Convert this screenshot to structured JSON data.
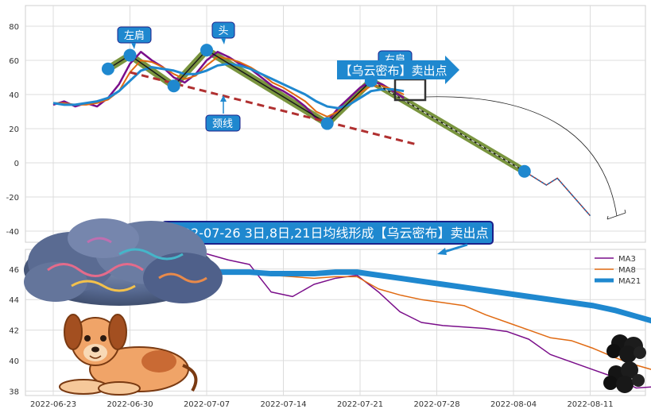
{
  "annotations": {
    "left_shoulder": "左肩",
    "head": "头",
    "right_shoulder": "右肩",
    "neckline": "颈线",
    "sell_arrow": "【乌云密布】卖出点",
    "banner": "2022-07-26 3日,8日,21日均线形成【乌云密布】卖出点"
  },
  "colors": {
    "callout_fill": "#1f88cf",
    "banner_fill": "#1f88cf",
    "banner_border": "#1b1f8a",
    "neckline": "#b03030",
    "trend": "#6b8a2a",
    "ma3": "#7a0e8a",
    "ma8": "#e06a12",
    "ma21": "#1f88cf"
  },
  "chart_data": [
    {
      "type": "line",
      "x_ticks": [
        "2022-06-23",
        "2022-06-30",
        "2022-07-07",
        "2022-07-14",
        "2022-07-21",
        "2022-07-28",
        "2022-08-04",
        "2022-08-11"
      ],
      "ylim": [
        -45,
        92
      ],
      "y_ticks": [
        80,
        60,
        40,
        20,
        0,
        -20,
        -40
      ],
      "grid": true,
      "pattern_points": [
        {
          "date": "2022-06-28",
          "value": 55
        },
        {
          "date": "2022-06-30",
          "value": 63
        },
        {
          "date": "2022-07-04",
          "value": 45
        },
        {
          "date": "2022-07-07",
          "value": 66
        },
        {
          "date": "2022-07-18",
          "value": 23
        },
        {
          "date": "2022-07-22",
          "value": 48
        },
        {
          "date": "2022-08-05",
          "value": -5
        }
      ],
      "neckline": {
        "from": {
          "date": "2022-06-30",
          "value": 53
        },
        "to": {
          "date": "2022-07-26",
          "value": 11
        }
      },
      "projection": [
        {
          "date": "2022-08-05",
          "value": -5
        },
        {
          "date": "2022-08-07",
          "value": -13
        },
        {
          "date": "2022-08-08",
          "value": -9
        },
        {
          "date": "2022-08-11",
          "value": -31
        }
      ],
      "series": [
        {
          "values": [
            [
              0,
              34
            ],
            [
              1,
              36
            ],
            [
              2,
              33
            ],
            [
              3,
              35
            ],
            [
              4,
              33
            ],
            [
              5,
              38
            ],
            [
              6,
              46
            ],
            [
              7,
              58
            ],
            [
              8,
              65
            ],
            [
              9,
              60
            ],
            [
              10,
              56
            ],
            [
              11,
              50
            ],
            [
              12,
              47
            ],
            [
              13,
              52
            ],
            [
              14,
              60
            ],
            [
              15,
              65
            ],
            [
              16,
              62
            ],
            [
              17,
              58
            ],
            [
              18,
              55
            ],
            [
              19,
              50
            ],
            [
              20,
              45
            ],
            [
              21,
              42
            ],
            [
              22,
              38
            ],
            [
              23,
              33
            ],
            [
              24,
              26
            ],
            [
              25,
              24
            ],
            [
              26,
              32
            ],
            [
              27,
              38
            ],
            [
              28,
              44
            ],
            [
              29,
              48
            ],
            [
              30,
              46
            ],
            [
              31,
              42
            ],
            [
              32,
              38
            ]
          ]
        },
        {
          "values": [
            [
              0,
              35
            ],
            [
              1,
              35
            ],
            [
              2,
              34
            ],
            [
              3,
              34
            ],
            [
              4,
              35
            ],
            [
              5,
              37
            ],
            [
              6,
              42
            ],
            [
              7,
              53
            ],
            [
              8,
              60
            ],
            [
              9,
              59
            ],
            [
              10,
              56
            ],
            [
              11,
              52
            ],
            [
              12,
              49
            ],
            [
              13,
              51
            ],
            [
              14,
              57
            ],
            [
              15,
              62
            ],
            [
              16,
              61
            ],
            [
              17,
              59
            ],
            [
              18,
              56
            ],
            [
              19,
              52
            ],
            [
              20,
              47
            ],
            [
              21,
              44
            ],
            [
              22,
              40
            ],
            [
              23,
              36
            ],
            [
              24,
              30
            ],
            [
              25,
              27
            ],
            [
              26,
              30
            ],
            [
              27,
              35
            ],
            [
              28,
              41
            ],
            [
              29,
              45
            ],
            [
              30,
              45
            ],
            [
              31,
              43
            ],
            [
              32,
              40
            ]
          ]
        },
        {
          "values": [
            [
              0,
              35
            ],
            [
              1,
              34
            ],
            [
              2,
              34
            ],
            [
              3,
              35
            ],
            [
              4,
              36
            ],
            [
              5,
              38
            ],
            [
              6,
              42
            ],
            [
              7,
              48
            ],
            [
              8,
              54
            ],
            [
              9,
              56
            ],
            [
              10,
              55
            ],
            [
              11,
              54
            ],
            [
              12,
              52
            ],
            [
              13,
              52
            ],
            [
              14,
              54
            ],
            [
              15,
              57
            ],
            [
              16,
              58
            ],
            [
              17,
              57
            ],
            [
              18,
              55
            ],
            [
              19,
              52
            ],
            [
              20,
              49
            ],
            [
              21,
              46
            ],
            [
              22,
              43
            ],
            [
              23,
              40
            ],
            [
              24,
              36
            ],
            [
              25,
              33
            ],
            [
              26,
              32
            ],
            [
              27,
              34
            ],
            [
              28,
              38
            ],
            [
              29,
              42
            ],
            [
              30,
              43
            ],
            [
              31,
              43
            ],
            [
              32,
              42
            ]
          ]
        }
      ]
    },
    {
      "type": "line",
      "x_ticks": [
        "2022-06-23",
        "2022-06-30",
        "2022-07-07",
        "2022-07-14",
        "2022-07-21",
        "2022-07-28",
        "2022-08-04",
        "2022-08-11"
      ],
      "ylim": [
        37.6,
        47.2
      ],
      "y_ticks": [
        46,
        44,
        42,
        40,
        38
      ],
      "grid": true,
      "legend_position": "top-right",
      "series": [
        {
          "name": "MA3",
          "values": [
            47.0,
            46.6,
            46.3,
            44.5,
            44.2,
            45.0,
            45.4,
            45.6,
            44.5,
            43.2,
            42.5,
            42.3,
            42.2,
            42.1,
            41.9,
            41.4,
            40.4,
            39.9,
            39.4,
            38.9,
            38.2,
            38.3,
            38.8,
            39.2,
            39.1
          ]
        },
        {
          "name": "MA8",
          "values": [
            46.0,
            45.8,
            45.7,
            45.6,
            45.5,
            45.4,
            45.5,
            45.5,
            44.7,
            44.3,
            44.0,
            43.8,
            43.6,
            43.0,
            42.5,
            42.0,
            41.5,
            41.3,
            40.8,
            40.2,
            39.7,
            39.3,
            39.0,
            38.9,
            38.9
          ]
        },
        {
          "name": "MA21",
          "values": [
            45.8,
            45.8,
            45.8,
            45.7,
            45.7,
            45.7,
            45.8,
            45.8,
            45.6,
            45.4,
            45.2,
            45.0,
            44.8,
            44.6,
            44.4,
            44.2,
            44.0,
            43.8,
            43.6,
            43.3,
            42.9,
            42.5,
            42.1,
            41.7,
            41.3
          ]
        }
      ]
    }
  ]
}
